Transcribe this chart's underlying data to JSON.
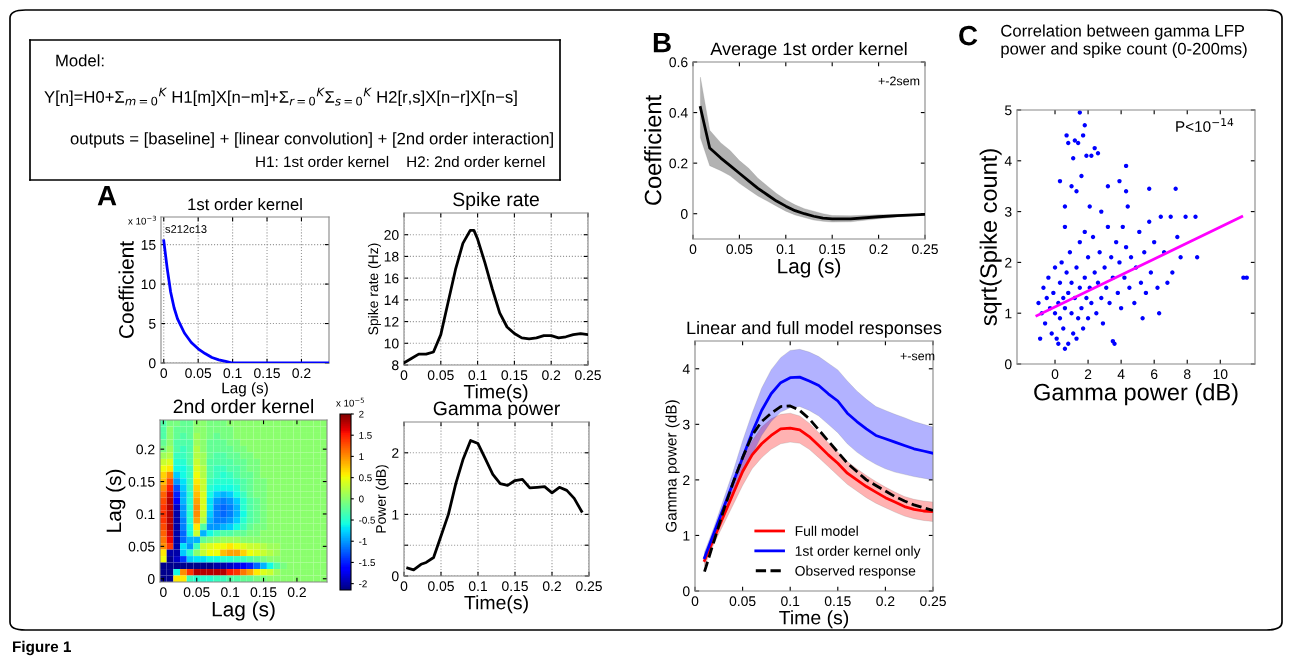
{
  "chart_data": [
    {
      "type": "other",
      "annotations": [
        "Model:",
        "Y[n]=H0+Σ$_{m=0}$$^{K}$ H1[m]X[n−m]+Σ$_{r=0}$$^{K}$Σ$_{s=0}$$^{K}$ H2[r,s]X[n−r]X[n−s]",
        "outputs = [baseline] + [linear convolution] + [2nd order interaction]",
        "H1: 1st order kernel    H2: 2nd order kernel",
        "Figure 1"
      ]
    },
    {
      "type": "line",
      "title": "1st order kernel",
      "xlabel": "Lag (s)",
      "ylabel": "Coefficient",
      "annotations": [
        "A",
        "x 10$^{−3}$",
        "s212c13"
      ],
      "x": [
        0,
        0.005,
        0.01,
        0.015,
        0.02,
        0.03,
        0.04,
        0.05,
        0.06,
        0.07,
        0.08,
        0.09,
        0.1,
        0.12,
        0.15,
        0.2,
        0.24
      ],
      "series": [
        {
          "color": "#0000ff",
          "values": [
            15.5,
            12,
            9.0,
            7,
            5.6,
            3.8,
            2.6,
            1.8,
            1.2,
            0.7,
            0.4,
            0.2,
            0,
            0,
            0,
            0,
            0
          ]
        }
      ],
      "xlim": [
        -0.004,
        0.24
      ],
      "ylim": [
        0,
        18.5
      ],
      "xticks": [
        0,
        0.05,
        0.1,
        0.15,
        0.2
      ],
      "yticks": [
        0,
        5,
        10,
        15
      ],
      "grid": true,
      "line_style": "solid"
    },
    {
      "type": "line",
      "title": "Spike rate",
      "xlabel": "Time(s)",
      "ylabel": "Spike rate (Hz)",
      "x": [
        0,
        0.01,
        0.02,
        0.03,
        0.04,
        0.05,
        0.06,
        0.07,
        0.08,
        0.09,
        0.095,
        0.1,
        0.11,
        0.12,
        0.13,
        0.14,
        0.15,
        0.16,
        0.17,
        0.18,
        0.19,
        0.2,
        0.21,
        0.22,
        0.23,
        0.24,
        0.25
      ],
      "series": [
        {
          "color": "#000000",
          "values": [
            8.2,
            8.6,
            9.0,
            9.0,
            9.2,
            10.8,
            13.8,
            16.8,
            19.2,
            20.4,
            20.4,
            19.6,
            17.4,
            15.0,
            12.8,
            11.5,
            10.9,
            10.5,
            10.4,
            10.5,
            10.7,
            10.7,
            10.5,
            10.6,
            10.8,
            10.9,
            10.8
          ]
        }
      ],
      "xlim": [
        0,
        0.25
      ],
      "ylim": [
        8,
        22
      ],
      "xticks": [
        0,
        0.05,
        0.1,
        0.15,
        0.2,
        0.25
      ],
      "yticks": [
        8,
        10,
        12,
        14,
        16,
        18,
        20
      ],
      "grid": true,
      "line_style": "solid"
    },
    {
      "type": "heatmap",
      "title": "2nd order kernel",
      "xlabel": "Lag (s)",
      "ylabel": "Lag (s)",
      "annotations": [
        "x 10$^{−5}$"
      ],
      "x": [
        0,
        0.01,
        0.02,
        0.03,
        0.04,
        0.05,
        0.06,
        0.07,
        0.08,
        0.09,
        0.1,
        0.11,
        0.12,
        0.13,
        0.14,
        0.15,
        0.16,
        0.17,
        0.18,
        0.19,
        0.2,
        0.21,
        0.22,
        0.23,
        0.24
      ],
      "y": [
        0.24,
        0.23,
        0.22,
        0.21,
        0.2,
        0.19,
        0.18,
        0.17,
        0.16,
        0.15,
        0.14,
        0.13,
        0.12,
        0.11,
        0.1,
        0.09,
        0.08,
        0.07,
        0.06,
        0.05,
        0.04,
        0.03,
        0.02,
        0.01,
        0
      ],
      "cells": [
        [
          -0.3,
          -0.1,
          -0.1,
          -0.2,
          -0.2,
          0,
          0,
          -0.1,
          -0.1,
          -0.1,
          0,
          0,
          0,
          0,
          0,
          0,
          0,
          0,
          0,
          0,
          0,
          0,
          0,
          0,
          0
        ],
        [
          -0.3,
          0,
          -0.2,
          -0.2,
          -0.2,
          0,
          0,
          -0.1,
          -0.1,
          -0.1,
          -0.1,
          0,
          0,
          0,
          0,
          0,
          0,
          0,
          0,
          0,
          0,
          0,
          0,
          0,
          0
        ],
        [
          -0.3,
          0,
          -0.2,
          -0.3,
          -0.2,
          0.1,
          0,
          -0.1,
          -0.2,
          -0.1,
          -0.1,
          0,
          0,
          0,
          0,
          0,
          0,
          0,
          0,
          0,
          0,
          0,
          0,
          0,
          0
        ],
        [
          -0.2,
          0,
          -0.3,
          -0.3,
          -0.3,
          0.1,
          0,
          -0.2,
          -0.2,
          -0.2,
          -0.1,
          -0.1,
          0,
          0,
          0,
          0,
          0,
          0,
          0,
          0,
          0,
          0,
          0,
          0,
          0
        ],
        [
          -0.1,
          0.1,
          -0.3,
          -0.4,
          -0.3,
          0.2,
          0,
          -0.2,
          -0.2,
          -0.2,
          -0.2,
          -0.1,
          -0.1,
          0,
          0,
          0,
          0,
          0,
          0,
          0,
          0,
          0,
          0,
          0,
          0
        ],
        [
          0.1,
          0.2,
          -0.4,
          -0.4,
          -0.3,
          0.2,
          0.1,
          -0.2,
          -0.3,
          -0.3,
          -0.2,
          -0.2,
          -0.1,
          -0.1,
          0,
          0,
          0,
          0,
          0,
          0,
          0,
          0,
          0,
          0,
          0
        ],
        [
          0.3,
          0.4,
          -0.5,
          -0.5,
          -0.3,
          0.3,
          0.1,
          -0.3,
          -0.3,
          -0.3,
          -0.3,
          -0.2,
          -0.2,
          -0.1,
          -0.1,
          0,
          0,
          0,
          0,
          0,
          0,
          0,
          0,
          0,
          0
        ],
        [
          0.5,
          0.6,
          -0.6,
          -0.6,
          -0.4,
          0.4,
          0.2,
          -0.3,
          -0.4,
          -0.4,
          -0.3,
          -0.3,
          -0.2,
          -0.1,
          -0.1,
          0,
          0,
          0,
          0,
          0,
          0,
          0,
          0,
          0,
          0
        ],
        [
          0.7,
          1.0,
          -0.8,
          -0.6,
          -0.4,
          0.5,
          0.2,
          -0.3,
          -0.4,
          -0.5,
          -0.4,
          -0.3,
          -0.2,
          -0.2,
          -0.1,
          0,
          0,
          0,
          0,
          0,
          0,
          0,
          0,
          0,
          0
        ],
        [
          0.8,
          1.3,
          -1.0,
          -0.7,
          -0.4,
          0.6,
          0.3,
          -0.4,
          -0.5,
          -0.5,
          -0.5,
          -0.4,
          -0.3,
          -0.2,
          -0.1,
          -0.1,
          0,
          0,
          0,
          0,
          0,
          0,
          0,
          0,
          0
        ],
        [
          1.0,
          1.5,
          -1.3,
          -0.8,
          -0.4,
          0.7,
          0.3,
          -0.5,
          -0.6,
          -0.6,
          -0.6,
          -0.5,
          -0.3,
          -0.2,
          -0.1,
          -0.1,
          0,
          0,
          0,
          0,
          0,
          0,
          0,
          0,
          0
        ],
        [
          1.2,
          1.7,
          -1.5,
          -0.9,
          -0.5,
          0.8,
          0.4,
          -0.6,
          -0.8,
          -0.9,
          -0.8,
          -0.6,
          -0.4,
          -0.2,
          -0.1,
          -0.1,
          0,
          0,
          0,
          0,
          0,
          0,
          0,
          0,
          0
        ],
        [
          1.3,
          1.8,
          -1.7,
          -0.9,
          -0.5,
          0.9,
          0.4,
          -0.7,
          -1.0,
          -1.1,
          -1.0,
          -0.8,
          -0.5,
          -0.3,
          -0.2,
          -0.1,
          0,
          0,
          0,
          0,
          0,
          0,
          0,
          0,
          0
        ],
        [
          1.4,
          1.8,
          -1.9,
          -1.0,
          -0.5,
          1.0,
          0.4,
          -0.7,
          -1.1,
          -1.2,
          -1.1,
          -0.9,
          -0.5,
          -0.3,
          -0.2,
          -0.1,
          0,
          0,
          0,
          0,
          0,
          0,
          0,
          0,
          0
        ],
        [
          1.4,
          1.8,
          -2.0,
          -1.0,
          -0.5,
          1.0,
          0.3,
          -0.8,
          -1.1,
          -1.2,
          -1.1,
          -0.9,
          -0.6,
          -0.3,
          -0.2,
          -0.1,
          0,
          0,
          0,
          0,
          0,
          0,
          0,
          0,
          0
        ],
        [
          1.4,
          1.8,
          -2.0,
          -1.1,
          -0.5,
          0.9,
          0.2,
          -0.9,
          -1.1,
          -1.1,
          -1.0,
          -0.8,
          -0.5,
          -0.3,
          -0.2,
          -0.1,
          0,
          0,
          0,
          0,
          0,
          0,
          0,
          0,
          0
        ],
        [
          1.3,
          1.8,
          -2.0,
          -1.1,
          -0.6,
          0.6,
          -0.3,
          -1.0,
          -1.0,
          -0.9,
          -0.8,
          -0.6,
          -0.4,
          -0.2,
          -0.1,
          -0.1,
          0,
          0,
          0,
          0,
          0,
          0,
          0,
          0,
          0
        ],
        [
          1.2,
          1.7,
          -2.0,
          -1.2,
          -0.6,
          0.3,
          -0.9,
          -0.6,
          -0.4,
          -0.3,
          -0.3,
          -0.2,
          -0.2,
          -0.1,
          -0.1,
          0,
          0,
          0,
          0,
          0,
          0,
          0,
          0,
          0,
          0
        ],
        [
          1.1,
          1.6,
          -2.0,
          -1.2,
          -0.9,
          -0.9,
          -0.2,
          -0.1,
          0,
          0.1,
          0.1,
          0.1,
          0,
          0,
          0,
          0,
          0,
          0,
          0,
          0,
          0,
          0,
          0,
          0,
          0
        ],
        [
          1.0,
          1.4,
          -2.0,
          -0.7,
          -1.0,
          -0.4,
          0.3,
          0.4,
          0.5,
          0.5,
          0.6,
          0.5,
          0.4,
          0.3,
          0.3,
          0.2,
          0.1,
          0.1,
          0,
          0,
          0,
          0,
          0,
          0,
          0
        ],
        [
          0.6,
          -2.0,
          -2.0,
          -0.8,
          -0.5,
          0,
          0.3,
          0.5,
          0.5,
          0.8,
          0.9,
          0.9,
          0.7,
          0.5,
          0.4,
          0.3,
          0.2,
          0.1,
          0,
          0,
          0,
          0,
          0,
          0,
          0
        ],
        [
          0.5,
          -2.1,
          -1.9,
          -1.4,
          -0.8,
          -0.7,
          -0.7,
          -0.6,
          -0.6,
          -0.5,
          -0.5,
          -0.4,
          -0.4,
          -0.3,
          -0.2,
          -0.1,
          0,
          0,
          0,
          0,
          0,
          0,
          0,
          0,
          0
        ],
        [
          -2.1,
          -2.1,
          -2.1,
          -2.1,
          -2.1,
          -2.1,
          -2.1,
          -2.1,
          -2.0,
          -2.0,
          -1.9,
          -1.8,
          -1.7,
          -1.5,
          -1.2,
          -0.9,
          -0.6,
          -0.3,
          -0.1,
          0,
          0,
          0,
          0,
          0,
          0
        ],
        [
          -2.1,
          -2.1,
          -0.6,
          1.0,
          1.4,
          1.8,
          1.8,
          1.8,
          1.8,
          1.8,
          1.5,
          1.4,
          1.1,
          0.9,
          0.6,
          0.4,
          0.3,
          0.1,
          0,
          0,
          0,
          0,
          0,
          0,
          0
        ],
        [
          -2.1,
          -2.1,
          0.6,
          0.6,
          -0.4,
          -0.5,
          -0.5,
          -0.5,
          -0.4,
          -0.4,
          -0.3,
          -0.3,
          -0.2,
          -0.2,
          -0.1,
          -0.1,
          0,
          0,
          0,
          0,
          0,
          0,
          0,
          0,
          0
        ]
      ],
      "xlim": [
        -0.005,
        0.245
      ],
      "ylim": [
        -0.005,
        0.245
      ],
      "xticks": [
        0,
        0.05,
        0.1,
        0.15,
        0.2
      ],
      "yticks": [
        0,
        0.05,
        0.1,
        0.15,
        0.2
      ],
      "clim": [
        -2.15,
        2
      ],
      "cticks": [
        -2,
        -1.5,
        -1,
        -0.5,
        0,
        0.5,
        1,
        1.5,
        2
      ]
    },
    {
      "type": "line",
      "title": "Gamma power",
      "xlabel": "Time(s)",
      "ylabel": "Power (dB)",
      "x": [
        0.005,
        0.013,
        0.023,
        0.03,
        0.04,
        0.05,
        0.06,
        0.07,
        0.08,
        0.09,
        0.1,
        0.11,
        0.12,
        0.13,
        0.14,
        0.15,
        0.16,
        0.17,
        0.18,
        0.19,
        0.2,
        0.21,
        0.22,
        0.23,
        0.24
      ],
      "series": [
        {
          "color": "#000000",
          "values": [
            0.13,
            0.1,
            0.19,
            0.22,
            0.3,
            0.65,
            1.0,
            1.5,
            1.9,
            2.2,
            2.15,
            1.9,
            1.65,
            1.5,
            1.47,
            1.55,
            1.57,
            1.43,
            1.44,
            1.45,
            1.35,
            1.44,
            1.39,
            1.26,
            1.05
          ]
        }
      ],
      "xlim": [
        0,
        0.25
      ],
      "ylim": [
        0,
        2.5
      ],
      "xticks": [
        0,
        0.05,
        0.1,
        0.15,
        0.2,
        0.25
      ],
      "yticks": [
        0,
        {
          "value": 0.5,
          "label": null
        },
        1,
        {
          "value": 1.5,
          "label": null
        },
        2
      ],
      "grid": true,
      "line_style": "solid"
    },
    {
      "type": "line",
      "title": "Average 1st order kernel",
      "xlabel": "Lag (s)",
      "ylabel": "Coefficient",
      "annotations": [
        "B",
        "+-2sem"
      ],
      "x": [
        0.008,
        0.018,
        0.03,
        0.04,
        0.05,
        0.06,
        0.07,
        0.08,
        0.09,
        0.1,
        0.11,
        0.12,
        0.13,
        0.14,
        0.15,
        0.17,
        0.2,
        0.22,
        0.25
      ],
      "series": [
        {
          "color": "#000000",
          "values": [
            0.42,
            0.26,
            0.22,
            0.19,
            0.16,
            0.13,
            0.1,
            0.075,
            0.05,
            0.03,
            0.012,
            0.0,
            -0.01,
            -0.017,
            -0.02,
            -0.02,
            -0.012,
            -0.008,
            -0.003
          ],
          "lower": [
            0.3,
            0.19,
            0.17,
            0.15,
            0.12,
            0.095,
            0.07,
            0.05,
            0.03,
            0.01,
            -0.005,
            -0.015,
            -0.025,
            -0.03,
            -0.033,
            -0.032,
            -0.02,
            -0.013,
            -0.005
          ],
          "upper": [
            0.54,
            0.33,
            0.28,
            0.25,
            0.21,
            0.18,
            0.14,
            0.11,
            0.08,
            0.055,
            0.035,
            0.02,
            0.01,
            0.0,
            -0.007,
            -0.008,
            -0.004,
            -0.003,
            -0.001
          ]
        }
      ],
      "xlim": [
        0,
        0.25
      ],
      "ylim": [
        -0.1,
        0.6
      ],
      "xticks": [
        0,
        0.05,
        0.1,
        0.15,
        0.2,
        0.25
      ],
      "yticks": [
        0,
        0.2,
        0.4,
        0.6
      ],
      "line_style": "solid"
    },
    {
      "type": "line",
      "title": "Linear and full model responses",
      "xlabel": "Time (s)",
      "ylabel": "Gamma power (dB)",
      "annotations": [
        "+-sem"
      ],
      "x": [
        0.01,
        0.02,
        0.03,
        0.04,
        0.05,
        0.06,
        0.07,
        0.08,
        0.09,
        0.1,
        0.11,
        0.12,
        0.13,
        0.14,
        0.15,
        0.16,
        0.17,
        0.18,
        0.19,
        0.2,
        0.21,
        0.22,
        0.23,
        0.24,
        0.25
      ],
      "series": [
        {
          "name": "Full model",
          "color": "#ff0000",
          "values": [
            0.55,
            0.95,
            1.35,
            1.75,
            2.15,
            2.45,
            2.65,
            2.8,
            2.92,
            2.93,
            2.9,
            2.78,
            2.62,
            2.45,
            2.3,
            2.12,
            2.0,
            1.88,
            1.78,
            1.68,
            1.6,
            1.52,
            1.47,
            1.44,
            1.43
          ],
          "lower": [
            0.45,
            0.85,
            1.2,
            1.55,
            1.9,
            2.2,
            2.4,
            2.55,
            2.65,
            2.68,
            2.66,
            2.55,
            2.4,
            2.24,
            2.08,
            1.92,
            1.8,
            1.68,
            1.58,
            1.5,
            1.42,
            1.35,
            1.3,
            1.27,
            1.25
          ],
          "upper": [
            0.65,
            1.05,
            1.5,
            1.95,
            2.4,
            2.7,
            2.95,
            3.1,
            3.18,
            3.2,
            3.15,
            3.02,
            2.85,
            2.67,
            2.5,
            2.33,
            2.2,
            2.08,
            1.97,
            1.87,
            1.78,
            1.7,
            1.65,
            1.62,
            1.6
          ]
        },
        {
          "name": "1st order kernel only",
          "color": "#0000ff",
          "values": [
            0.6,
            1.05,
            1.5,
            1.95,
            2.4,
            2.85,
            3.25,
            3.55,
            3.75,
            3.84,
            3.85,
            3.78,
            3.7,
            3.55,
            3.42,
            3.2,
            3.05,
            2.92,
            2.8,
            2.74,
            2.68,
            2.62,
            2.56,
            2.52,
            2.48
          ],
          "lower": [
            0.5,
            0.95,
            1.35,
            1.75,
            2.1,
            2.45,
            2.8,
            3.05,
            3.22,
            3.3,
            3.32,
            3.25,
            3.15,
            3.0,
            2.85,
            2.65,
            2.5,
            2.38,
            2.28,
            2.2,
            2.14,
            2.1,
            2.06,
            2.03,
            2.0
          ],
          "upper": [
            0.7,
            1.15,
            1.65,
            2.15,
            2.7,
            3.2,
            3.65,
            3.98,
            4.2,
            4.33,
            4.35,
            4.3,
            4.22,
            4.1,
            3.98,
            3.78,
            3.6,
            3.45,
            3.32,
            3.25,
            3.18,
            3.12,
            3.05,
            3.0,
            2.95
          ]
        },
        {
          "name": "Observed response",
          "color": "#000000",
          "line_style": "dashed",
          "values": [
            0.35,
            0.9,
            1.45,
            1.95,
            2.4,
            2.8,
            3.05,
            3.2,
            3.32,
            3.33,
            3.25,
            3.1,
            2.9,
            2.7,
            2.5,
            2.3,
            2.15,
            2.0,
            1.9,
            1.8,
            1.7,
            1.62,
            1.55,
            1.5,
            1.45
          ]
        }
      ],
      "xlim": [
        0,
        0.25
      ],
      "ylim": [
        0,
        4.5
      ],
      "xticks": [
        0,
        0.05,
        0.1,
        0.15,
        0.2,
        0.25
      ],
      "yticks": [
        0,
        1,
        2,
        3,
        4
      ],
      "legend": "bottom right",
      "line_style": "solid"
    },
    {
      "type": "scatter",
      "title": "Correlation between gamma LFP\npower and spike count (0-200ms)",
      "xlabel": "Gamma power (dB)",
      "ylabel": "sqrt(Spike count)",
      "annotations": [
        "C",
        "P<10$^{−14}$"
      ],
      "series": [
        {
          "color": "#0000ff",
          "marker": "circle",
          "x": [
            -1,
            -0.8,
            -0.7,
            -0.6,
            -0.5,
            -0.4,
            -0.3,
            -0.2,
            -0.1,
            0,
            0,
            0.1,
            0.2,
            0.3,
            0.3,
            0.4,
            0.5,
            0.5,
            0.6,
            0.7,
            0.8,
            0.8,
            0.9,
            1,
            1,
            1.1,
            1.2,
            1.3,
            1.4,
            1.5,
            1.5,
            1.6,
            1.7,
            1.8,
            1.9,
            2,
            2,
            2.1,
            2.2,
            2.3,
            2.4,
            2.5,
            2.6,
            2.7,
            2.8,
            2.9,
            3,
            3.1,
            3.2,
            3.3,
            3.4,
            3.5,
            3.6,
            3.7,
            3.8,
            3.9,
            4,
            4.1,
            4.2,
            4.3,
            4.5,
            4.6,
            4.8,
            4.9,
            5.1,
            5.2,
            5.3,
            5.4,
            5.5,
            5.7,
            5.8,
            6,
            6.2,
            6.3,
            6.4,
            6.6,
            6.8,
            7,
            7.1,
            7.4,
            7.6,
            7.9,
            8.5,
            8.6,
            11.4,
            11.6,
            0.3,
            0.6,
            0.7,
            0.8,
            1,
            1.1,
            1.2,
            1.3,
            1.4,
            1.5,
            1.6,
            1.7,
            1.8,
            1.9,
            2.2,
            2.4,
            2.6,
            2.1,
            3.2,
            3.9,
            4.3,
            4.3,
            5.7,
            7.3,
            2.8,
            4.4,
            1.8,
            0.6,
            0.6,
            1.3,
            3.5,
            0.2,
            -0.9
          ],
          "values": [
            1.2,
            1.0,
            1.5,
            0.8,
            1.3,
            1.7,
            1.1,
            0.6,
            1.4,
            1.0,
            1.9,
            0.5,
            1.2,
            1.6,
            0.9,
            2.0,
            1.3,
            0.7,
            1.1,
            1.8,
            1.4,
            0.4,
            2.2,
            1.0,
            1.6,
            0.6,
            1.3,
            1.9,
            0.9,
            2.4,
            1.5,
            1.1,
            0.7,
            1.7,
            1.3,
            2.1,
            0.9,
            1.5,
            1.2,
            2.5,
            1.8,
            1.0,
            1.6,
            2.2,
            1.3,
            0.8,
            1.9,
            1.5,
            2.7,
            1.2,
            2.1,
            1.7,
            0.4,
            2.4,
            1.4,
            2.0,
            1.1,
            2.7,
            1.7,
            2.3,
            1.5,
            2.1,
            1.2,
            1.9,
            2.6,
            1.6,
            0.9,
            2.2,
            1.4,
            2.8,
            1.8,
            2.4,
            1.5,
            1.0,
            2.9,
            2.2,
            1.6,
            2.9,
            1.8,
            2.5,
            2.1,
            2.9,
            2.9,
            2.1,
            1.7,
            1.7,
            3.6,
            3.1,
            4.5,
            4.35,
            3.5,
            4.05,
            4.4,
            3.4,
            4.35,
            4.95,
            3.7,
            4.5,
            4.7,
            4.1,
            4.1,
            4.25,
            4.15,
            3.1,
            3.5,
            3.6,
            3.4,
            3.9,
            3.45,
            3.45,
            3.0,
            3.1,
            2.6,
            2.7,
            0.3,
            0.5,
            0.45,
            0.4,
            0.5
          ]
        },
        {
          "type": "line",
          "color": "#ff00ff",
          "x": [
            -1.1,
            11.3
          ],
          "values": [
            0.95,
            2.9
          ]
        }
      ],
      "xlim": [
        -2.3,
        12.1
      ],
      "ylim": [
        0,
        5
      ],
      "xticks": [
        0,
        2,
        4,
        6,
        8,
        10
      ],
      "yticks": [
        0,
        1,
        2,
        3,
        4,
        5
      ],
      "line_style": "solid"
    }
  ]
}
